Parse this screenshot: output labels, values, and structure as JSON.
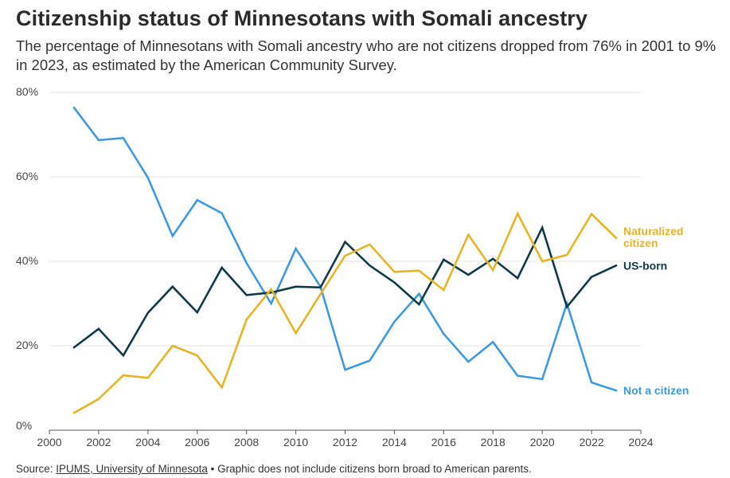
{
  "title": "Citizenship status of Minnesotans with Somali ancestry",
  "subtitle": "The percentage of Minnesotans with Somali ancestry who are not citizens dropped from 76% in 2001 to 9% in 2023, as estimated by the American Community Survey.",
  "source": {
    "prefix": "Source: ",
    "link_text": "IPUMS, University of Minnesota",
    "note": " • Graphic does not include citizens born broad to American parents."
  },
  "chart_data": {
    "type": "line",
    "title": "Citizenship status of Minnesotans with Somali ancestry",
    "xlabel": "",
    "ylabel": "",
    "xlim": [
      2000,
      2024
    ],
    "ylim": [
      0,
      80
    ],
    "x_ticks": [
      "2000",
      "2002",
      "2004",
      "2006",
      "2008",
      "2010",
      "2012",
      "2014",
      "2016",
      "2018",
      "2020",
      "2022",
      "2024"
    ],
    "y_ticks": [
      "0%",
      "20%",
      "40%",
      "60%",
      "80%"
    ],
    "grid": true,
    "x": [
      2001,
      2002,
      2003,
      2004,
      2005,
      2006,
      2007,
      2008,
      2009,
      2010,
      2011,
      2012,
      2013,
      2014,
      2015,
      2016,
      2017,
      2018,
      2019,
      2020,
      2021,
      2022,
      2023
    ],
    "series": [
      {
        "name": "Not a citizen",
        "label": "Not a citizen",
        "color": "#3b9ae1",
        "values": [
          76.4,
          68.7,
          69.2,
          59.8,
          46.0,
          54.5,
          51.4,
          39.6,
          30.0,
          43.0,
          34.0,
          14.3,
          16.5,
          25.7,
          32.3,
          22.8,
          16.2,
          20.9,
          12.9,
          12.1,
          30.0,
          11.3,
          9.4
        ]
      },
      {
        "name": "US-born",
        "label": "US-born",
        "color": "#0e3a4a",
        "values": [
          19.6,
          24.0,
          17.7,
          27.8,
          34.0,
          27.9,
          38.5,
          32.0,
          32.6,
          34.0,
          33.8,
          44.6,
          39.0,
          35.0,
          29.8,
          40.4,
          36.8,
          40.6,
          36.0,
          48.0,
          29.2,
          36.3,
          39.0
        ]
      },
      {
        "name": "Naturalized citizen",
        "label": "Naturalized\ncitizen",
        "color": "#e8b422",
        "values": [
          4.1,
          7.4,
          13.0,
          12.4,
          20.0,
          17.7,
          10.1,
          26.2,
          33.4,
          23.0,
          32.2,
          41.3,
          44.0,
          37.5,
          37.8,
          33.2,
          46.3,
          37.9,
          51.3,
          40.0,
          41.5,
          51.2,
          45.5
        ]
      }
    ]
  }
}
